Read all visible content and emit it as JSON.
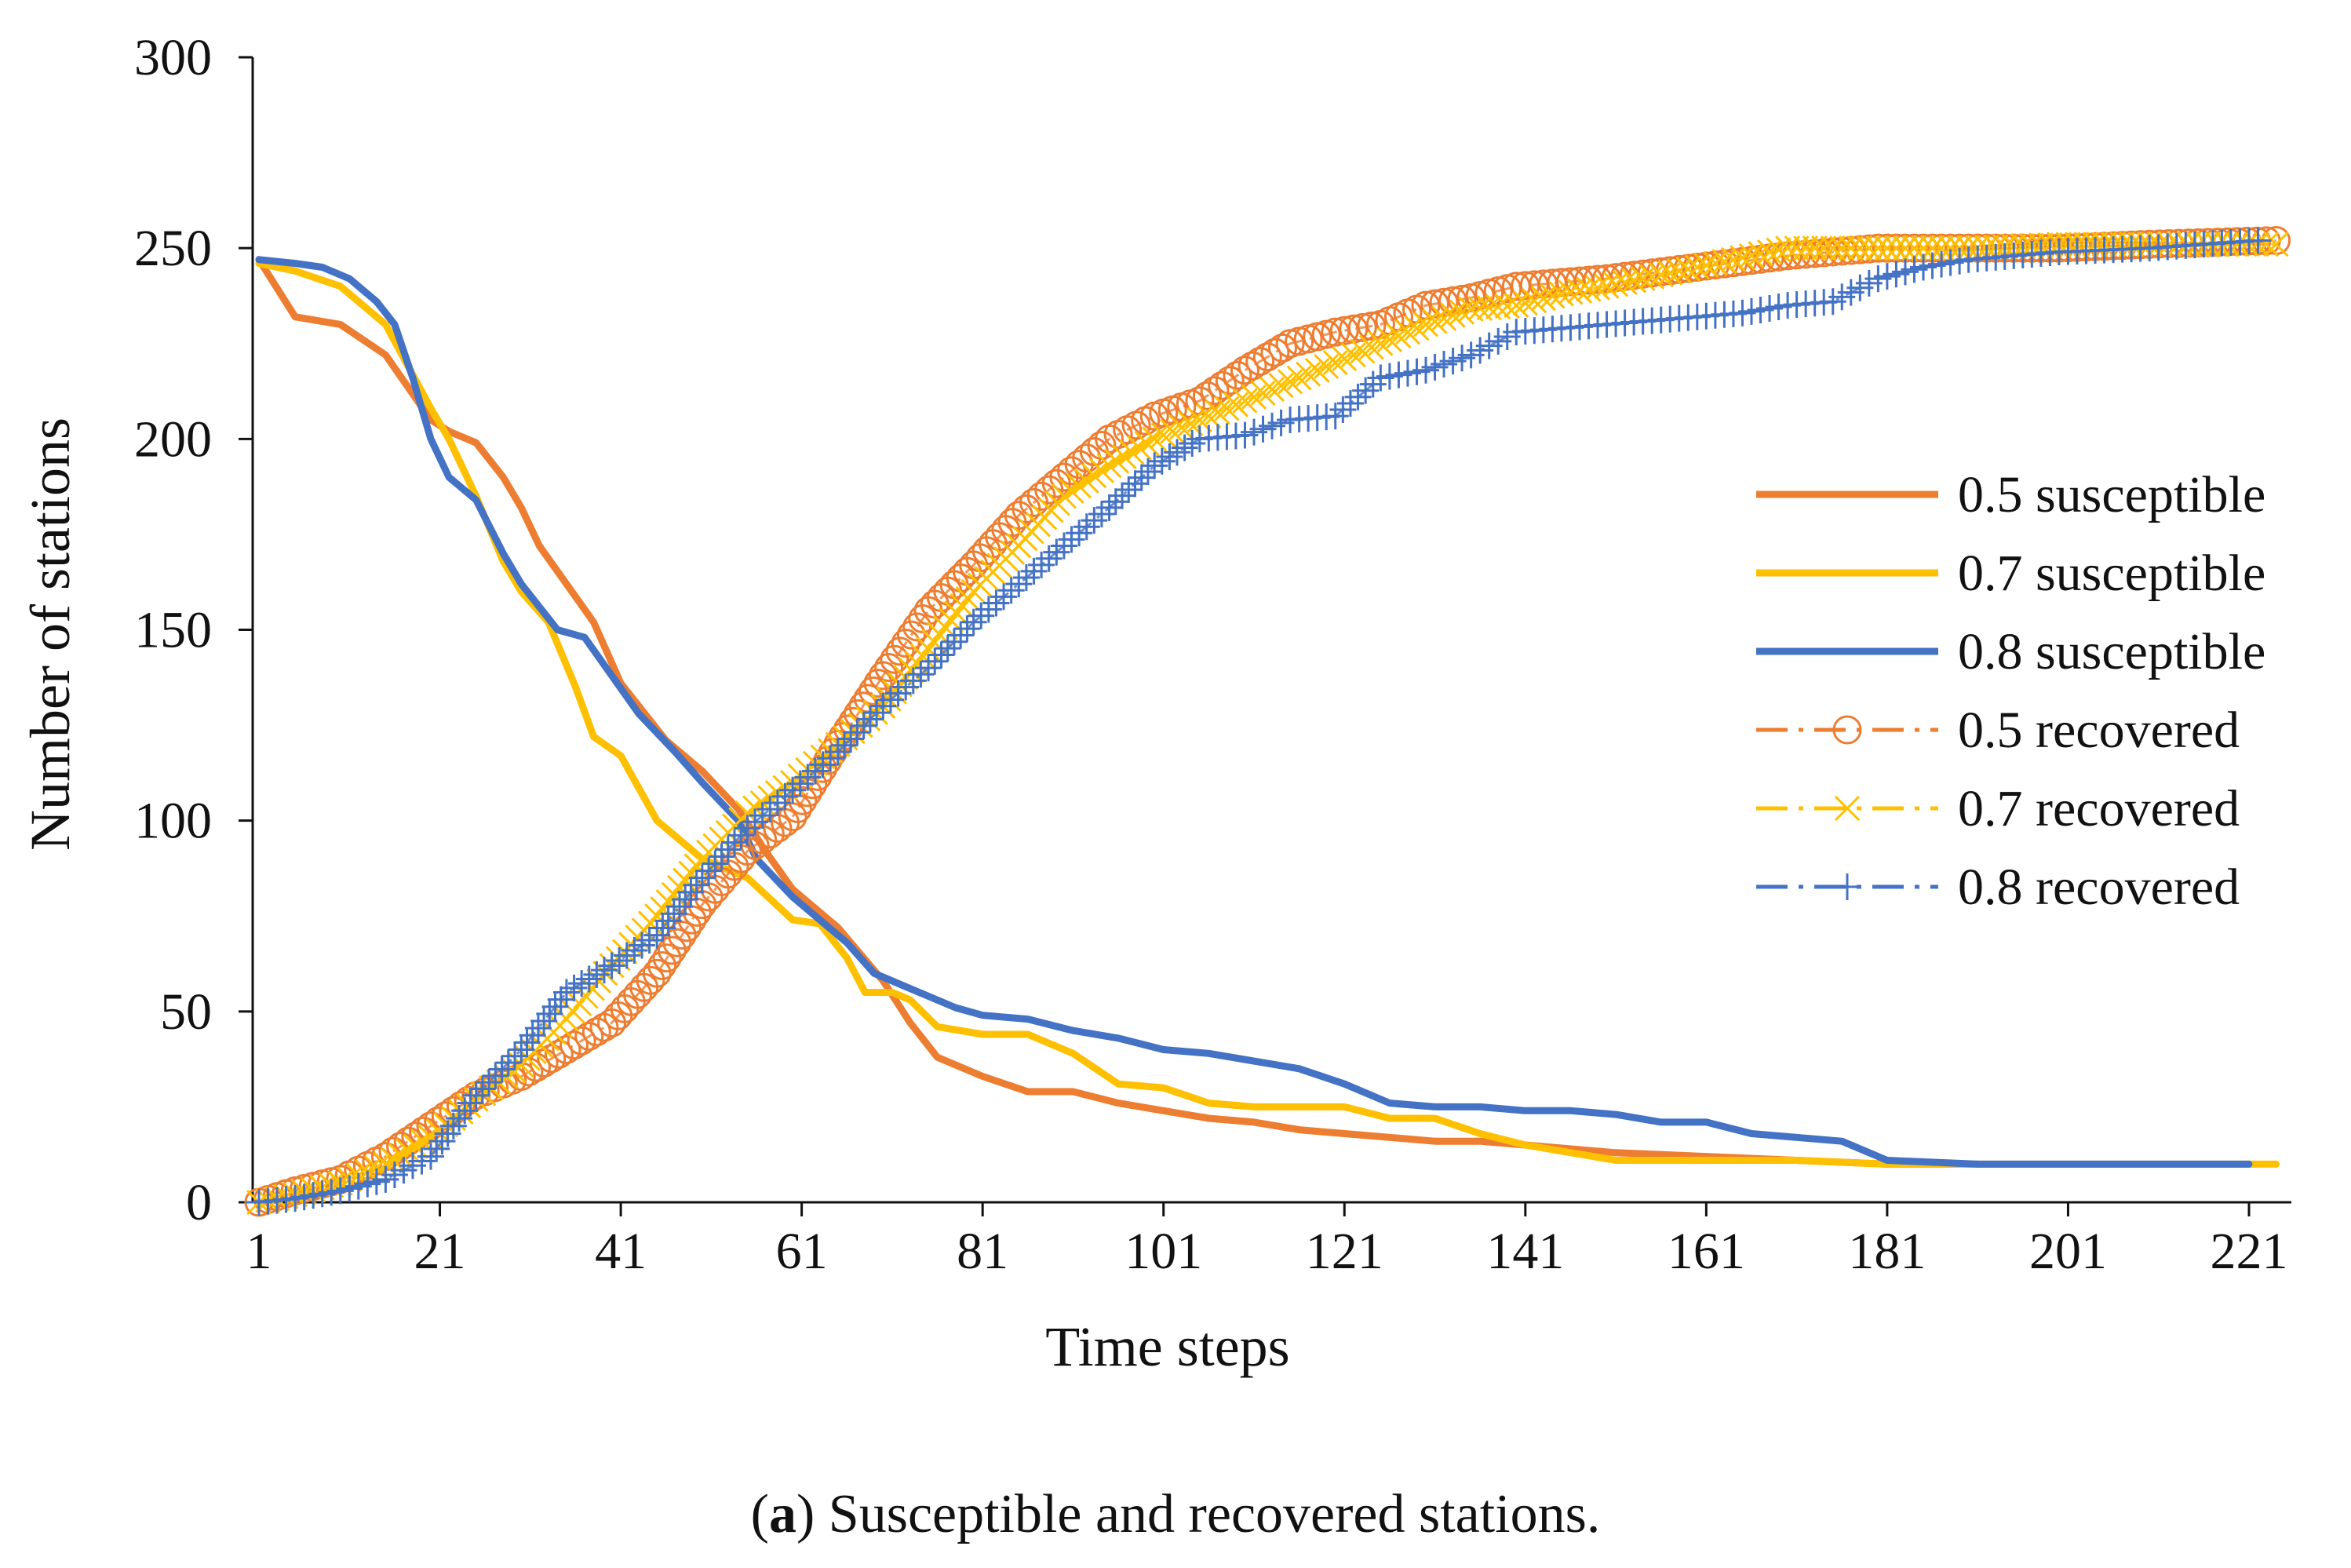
{
  "chart_data": {
    "type": "line",
    "title": "",
    "xlabel": "Time steps",
    "ylabel": "Number of stations",
    "xlim": [
      1,
      224
    ],
    "ylim": [
      0,
      300
    ],
    "x_ticks": [
      "1",
      "21",
      "41",
      "61",
      "81",
      "101",
      "121",
      "141",
      "161",
      "181",
      "201",
      "221"
    ],
    "x_tick_values": [
      1,
      21,
      41,
      61,
      81,
      101,
      121,
      141,
      161,
      181,
      201,
      221
    ],
    "y_ticks": [
      "0",
      "50",
      "100",
      "150",
      "200",
      "250",
      "300"
    ],
    "y_tick_values": [
      0,
      50,
      100,
      150,
      200,
      250,
      300
    ],
    "grid": false,
    "legend_position": "right",
    "series": [
      {
        "name": "0.5 susceptible",
        "color": "#ED7D31",
        "style": "solid",
        "marker": "none",
        "x": [
          1,
          5,
          10,
          15,
          20,
          22,
          25,
          28,
          30,
          32,
          35,
          38,
          41,
          43,
          46,
          50,
          54,
          57,
          60,
          65,
          70,
          73,
          76,
          81,
          86,
          91,
          96,
          101,
          106,
          111,
          116,
          121,
          126,
          131,
          136,
          141,
          151,
          161,
          171,
          181,
          191
        ],
        "y": [
          247,
          232,
          230,
          222,
          205,
          202,
          199,
          190,
          182,
          172,
          162,
          152,
          136,
          130,
          121,
          113,
          103,
          92,
          82,
          72,
          58,
          47,
          38,
          33,
          29,
          29,
          26,
          24,
          22,
          21,
          19,
          18,
          17,
          16,
          16,
          15,
          13,
          12,
          11,
          10,
          10
        ]
      },
      {
        "name": "0.7 susceptible",
        "color": "#FFC000",
        "style": "solid",
        "marker": "none",
        "x": [
          1,
          5,
          10,
          15,
          20,
          22,
          25,
          28,
          30,
          33,
          36,
          38,
          41,
          45,
          50,
          55,
          60,
          63,
          66,
          68,
          71,
          73,
          76,
          81,
          86,
          91,
          96,
          101,
          106,
          111,
          121,
          126,
          131,
          136,
          141,
          151,
          161,
          171,
          181,
          191,
          201,
          211,
          224
        ],
        "y": [
          246,
          244,
          240,
          230,
          208,
          200,
          185,
          168,
          160,
          152,
          135,
          122,
          117,
          100,
          90,
          85,
          74,
          73,
          64,
          55,
          55,
          53,
          46,
          44,
          44,
          39,
          31,
          30,
          26,
          25,
          25,
          22,
          22,
          18,
          15,
          11,
          11,
          11,
          10,
          10,
          10,
          10,
          10
        ]
      },
      {
        "name": "0.8 susceptible",
        "color": "#4472C4",
        "style": "solid",
        "marker": "none",
        "x": [
          1,
          5,
          8,
          11,
          14,
          16,
          18,
          20,
          22,
          25,
          28,
          30,
          32,
          34,
          37,
          40,
          43,
          47,
          50,
          54,
          56,
          58,
          60,
          63,
          66,
          69,
          72,
          75,
          78,
          81,
          86,
          91,
          96,
          101,
          106,
          111,
          116,
          121,
          126,
          131,
          136,
          141,
          146,
          151,
          156,
          161,
          166,
          171,
          176,
          181,
          191,
          201,
          211,
          221
        ],
        "y": [
          247,
          246,
          245,
          242,
          236,
          230,
          216,
          200,
          190,
          184,
          170,
          162,
          156,
          150,
          148,
          138,
          128,
          118,
          110,
          100,
          90,
          85,
          80,
          74,
          68,
          60,
          57,
          54,
          51,
          49,
          48,
          45,
          43,
          40,
          39,
          37,
          35,
          31,
          26,
          25,
          25,
          24,
          24,
          23,
          21,
          21,
          18,
          17,
          16,
          11,
          10,
          10,
          10,
          10
        ]
      },
      {
        "name": "0.5 recovered",
        "color": "#ED7D31",
        "style": "dashdot",
        "marker": "circle",
        "x": [
          1,
          5,
          10,
          15,
          20,
          25,
          30,
          35,
          40,
          45,
          50,
          55,
          60,
          65,
          70,
          75,
          80,
          85,
          90,
          95,
          100,
          105,
          110,
          115,
          120,
          125,
          130,
          135,
          140,
          145,
          150,
          160,
          170,
          180,
          190,
          200,
          210,
          224
        ],
        "y": [
          0,
          3,
          6,
          12,
          20,
          28,
          33,
          40,
          47,
          60,
          78,
          92,
          101,
          120,
          138,
          155,
          167,
          180,
          190,
          200,
          206,
          210,
          218,
          225,
          228,
          230,
          235,
          237,
          240,
          241,
          242,
          245,
          248,
          250,
          250,
          250,
          251,
          252
        ]
      },
      {
        "name": "0.7 recovered",
        "color": "#FFC000",
        "style": "dashdot",
        "marker": "x",
        "x": [
          1,
          5,
          10,
          15,
          20,
          25,
          30,
          35,
          40,
          45,
          50,
          55,
          60,
          65,
          70,
          75,
          80,
          85,
          90,
          95,
          100,
          105,
          110,
          115,
          120,
          125,
          130,
          135,
          140,
          145,
          150,
          160,
          170,
          180,
          190,
          200,
          210,
          224
        ],
        "y": [
          0,
          2,
          5,
          10,
          17,
          27,
          36,
          48,
          62,
          75,
          90,
          102,
          110,
          120,
          130,
          145,
          160,
          172,
          185,
          193,
          200,
          205,
          210,
          215,
          220,
          225,
          230,
          234,
          235,
          238,
          240,
          245,
          250,
          250,
          250,
          251,
          251,
          251
        ]
      },
      {
        "name": "0.8 recovered",
        "color": "#4472C4",
        "style": "dashdot",
        "marker": "plus",
        "x": [
          1,
          5,
          10,
          15,
          20,
          25,
          30,
          35,
          40,
          45,
          50,
          55,
          60,
          65,
          70,
          75,
          80,
          85,
          90,
          95,
          100,
          105,
          110,
          115,
          120,
          125,
          130,
          135,
          140,
          145,
          150,
          155,
          160,
          165,
          170,
          175,
          180,
          185,
          190,
          200,
          210,
          222
        ],
        "y": [
          0,
          1,
          3,
          6,
          12,
          28,
          40,
          55,
          62,
          70,
          85,
          98,
          108,
          118,
          130,
          140,
          152,
          162,
          172,
          182,
          193,
          200,
          201,
          205,
          206,
          216,
          218,
          222,
          228,
          229,
          230,
          231,
          232,
          233,
          235,
          236,
          242,
          245,
          247,
          249,
          250,
          252
        ]
      }
    ]
  },
  "caption": {
    "label": "a",
    "text": " Susceptible and recovered stations."
  }
}
